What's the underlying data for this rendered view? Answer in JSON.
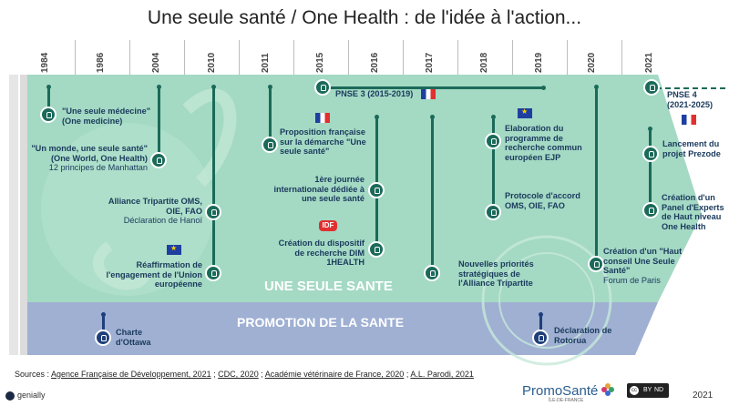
{
  "title": "Une seule santé / One Health : de l'idée à l'action...",
  "years": [
    "1984",
    "1986",
    "2004",
    "2010",
    "2011",
    "2015",
    "2016",
    "2017",
    "2018",
    "2019",
    "2020",
    "2021"
  ],
  "band_one_health": "UNE SEULE SANTE",
  "band_promotion": "PROMOTION DE LA SANTE",
  "events": {
    "e1984": {
      "title": "\"Une seule médecine\" (One medicine)"
    },
    "e2004": {
      "title": "\"Un monde, une seule santé\" (One World, One Health)",
      "sub": "12 principes de Manhattan"
    },
    "e2010a": {
      "title": "Alliance Tripartite OMS, OIE, FAO",
      "sub": "Déclaration de Hanoï"
    },
    "e2010b": {
      "title": "Réaffirmation de l'engagement de l'Union européenne"
    },
    "e2011": {
      "title": "Proposition française sur la démarche \"Une seule santé\""
    },
    "pnse3": {
      "title": "PNSE 3 (2015-2019)"
    },
    "e2016a": {
      "title": "1ère journée internationale dédiée à une seule santé"
    },
    "e2016b": {
      "title": "Création du dispositif de recherche DIM 1HEALTH"
    },
    "idf": "IDF",
    "e2017": {
      "title": "Nouvelles priorités stratégiques de l'Alliance Tripartite"
    },
    "e2018a": {
      "title": "Elaboration du programme de recherche commun européen EJP"
    },
    "e2018b": {
      "title": "Protocole d'accord OMS, OIE, FAO"
    },
    "e2020": {
      "title": "Création d'un \"Haut conseil Une Seule Santé\"",
      "sub": "Forum de Paris"
    },
    "pnse4": {
      "title": "PNSE 4 (2021-2025)"
    },
    "e2021a": {
      "title": "Lancement du projet Prezode"
    },
    "e2021b": {
      "title": "Création d'un Panel d'Experts de Haut niveau One Health"
    },
    "ottawa": {
      "title": "Charte d'Ottawa"
    },
    "rotorua": {
      "title": "Déclaration de Rotorua"
    }
  },
  "sources_prefix": "Sources : ",
  "sources": [
    "Agence Française de Développement, 2021",
    "CDC, 2020",
    "Académie vétérinaire de France, 2020",
    "A.L. Parodi, 2021"
  ],
  "sep": " ; ",
  "brand": "genially",
  "logo_text": "PromoSanté",
  "logo_sub": "ÎLE-DE-FRANCE",
  "cc_text": "cc",
  "cc_by": "BY",
  "cc_nd": "ND",
  "year_footer": "2021",
  "colors": {
    "teal_band": "#a4d9c4",
    "teal_dark": "#1b6a59",
    "blue_band": "#9fb0d3",
    "blue_dark": "#1f3f7a"
  }
}
